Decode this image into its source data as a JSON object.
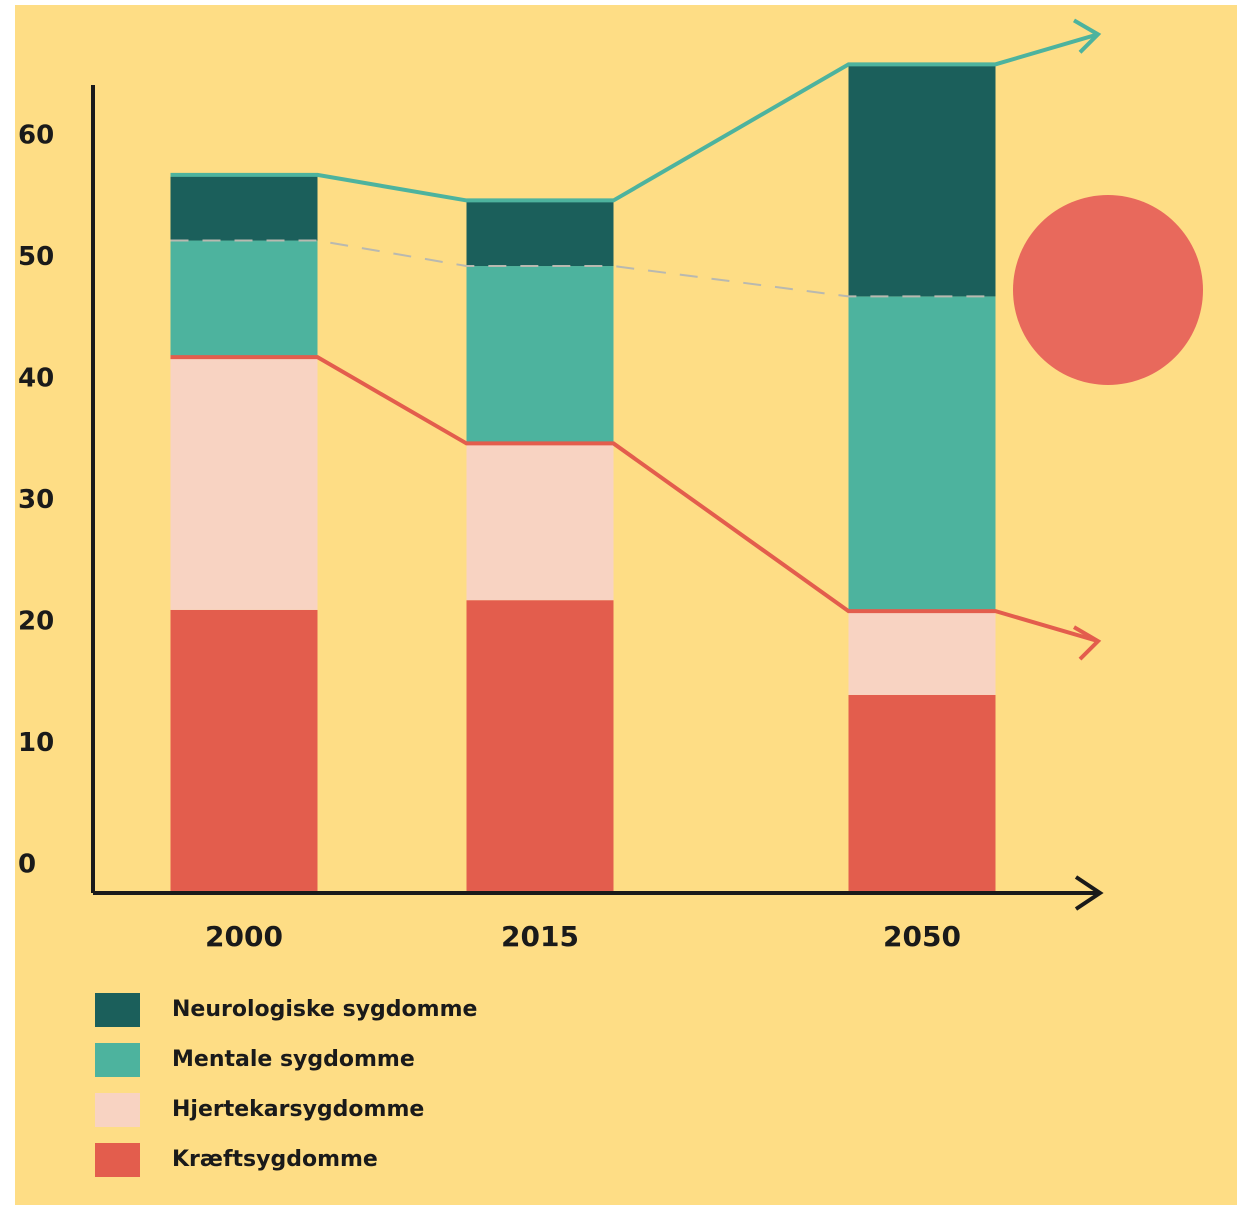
{
  "chart_data": {
    "type": "stacked_bar",
    "categories": [
      "2000",
      "2015",
      "2050"
    ],
    "series": [
      {
        "name": "Kræftsygdomme",
        "color": "#e35d4d",
        "values": [
          23.3,
          24.1,
          16.3
        ]
      },
      {
        "name": "Hjertekarsygdomme",
        "color": "#f8d3c2",
        "values": [
          20.8,
          12.9,
          6.9
        ]
      },
      {
        "name": "Mentale sygdomme",
        "color": "#4db39e",
        "values": [
          9.6,
          14.6,
          25.9
        ]
      },
      {
        "name": "Neurologiske sygdomme",
        "color": "#1b5f5b",
        "values": [
          5.4,
          5.4,
          19.1
        ]
      }
    ],
    "ylim": [
      0,
      66.5
    ],
    "yticks": [
      0,
      10,
      20,
      30,
      40,
      50,
      60
    ],
    "grid": false
  }
}
